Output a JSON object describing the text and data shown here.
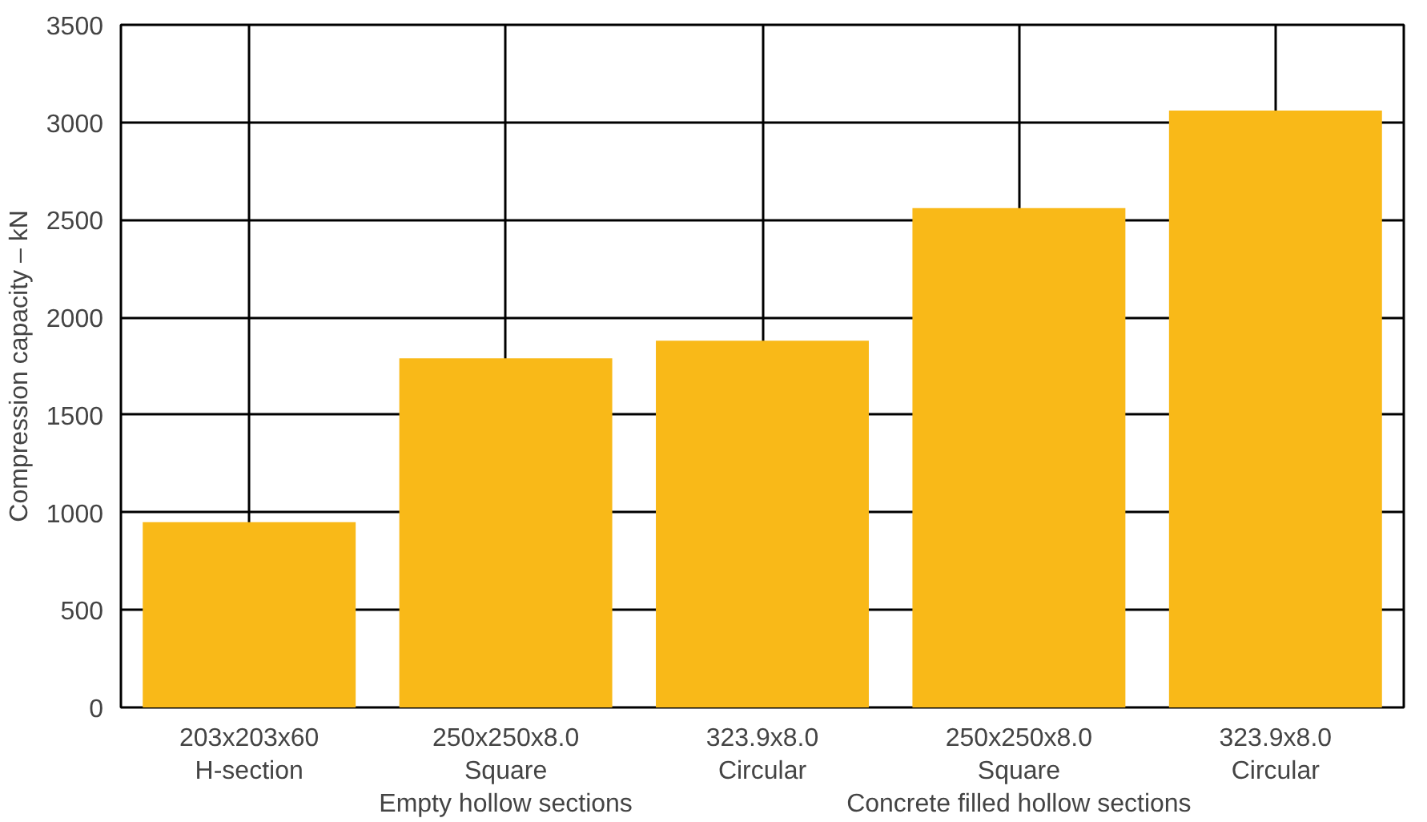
{
  "chart_data": {
    "type": "bar",
    "ylabel": "Compression capacity – kN",
    "categories": [
      "203x203x60\nH-section",
      "250x250x8.0\nSquare\nEmpty hollow sections",
      "323.9x8.0\nCircular",
      "250x250x8.0\nSquare\nConcrete filled hollow sections",
      "323.9x8.0\nCircular"
    ],
    "values": [
      950,
      1790,
      1880,
      2560,
      3060
    ],
    "color": "#f9b918",
    "ylim": [
      0,
      3500
    ],
    "yticks": [
      0,
      500,
      1000,
      1500,
      2000,
      2500,
      3000,
      3500
    ],
    "grid": true
  }
}
